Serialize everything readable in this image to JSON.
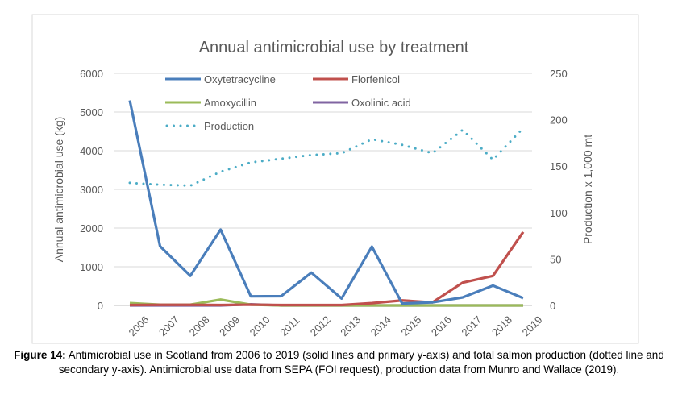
{
  "chart_data": {
    "type": "line",
    "title": "Annual antimicrobial use by treatment",
    "ylabel": "Annual antimicrobial use (kg)",
    "y2label": "Production x 1,000 mt",
    "ylim": [
      0,
      6000
    ],
    "y2lim": [
      0,
      250
    ],
    "yticks": [
      0,
      1000,
      2000,
      3000,
      4000,
      5000,
      6000
    ],
    "y2ticks": [
      0,
      50,
      100,
      150,
      200,
      250
    ],
    "grid": true,
    "legend": "top-left",
    "categories": [
      "2006",
      "2007",
      "2008",
      "2009",
      "2010",
      "2011",
      "2012",
      "2013",
      "2014",
      "2015",
      "2016",
      "2017",
      "2018",
      "2019"
    ],
    "series": [
      {
        "name": "Oxytetracycline",
        "axis": "primary",
        "color": "#4a7ebb",
        "style": "solid",
        "values": [
          5300,
          1530,
          765,
          1960,
          236,
          240,
          848,
          180,
          1520,
          50,
          80,
          208,
          514,
          190
        ]
      },
      {
        "name": "Florfenicol",
        "axis": "primary",
        "color": "#c0504d",
        "style": "solid",
        "values": [
          10,
          15,
          15,
          10,
          20,
          10,
          10,
          10,
          60,
          130,
          80,
          590,
          765,
          1900
        ]
      },
      {
        "name": "Amoxycillin",
        "axis": "primary",
        "color": "#9bbb59",
        "style": "solid",
        "values": [
          60,
          20,
          20,
          152,
          20,
          0,
          0,
          0,
          0,
          0,
          0,
          0,
          0,
          0
        ]
      },
      {
        "name": "Oxolinic acid",
        "axis": "primary",
        "color": "#8064a2",
        "style": "solid",
        "values": [
          0,
          0,
          0,
          0,
          30,
          0,
          0,
          0,
          0,
          0,
          0,
          0,
          0,
          0
        ]
      },
      {
        "name": "Production",
        "axis": "secondary",
        "color": "#4bacc6",
        "style": "dotted",
        "values": [
          132,
          130,
          129,
          144,
          154,
          158,
          162,
          164,
          179,
          173,
          164,
          189,
          157,
          191
        ]
      }
    ]
  },
  "caption": {
    "label": "Figure 14:",
    "text": " Antimicrobial use in Scotland from 2006 to 2019 (solid lines and primary y-axis) and total salmon production (dotted line and secondary y-axis). Antimicrobial use data from SEPA (FOI request), production data from Munro and Wallace (2019)."
  }
}
